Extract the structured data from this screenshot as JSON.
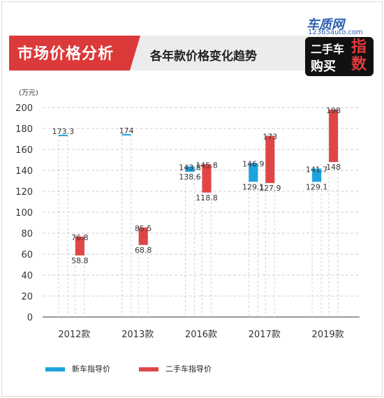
{
  "header": {
    "title": "市场价格分析",
    "subtitle": "各年款价格变化趋势",
    "logo": {
      "brand": "车质网",
      "url": "12365auto.com",
      "line1": "二手车",
      "line2": "购买",
      "big": "指数"
    }
  },
  "colors": {
    "new": "#1ba3de",
    "used": "#e04646"
  },
  "chart_data": {
    "type": "bar",
    "subtype": "floating-range",
    "ylabel": "(万元)",
    "ylim": [
      0,
      200
    ],
    "yticks": [
      0,
      20,
      40,
      60,
      80,
      100,
      120,
      140,
      160,
      180,
      200
    ],
    "grid": true,
    "legend_position": "bottom-left",
    "categories": [
      "2012款",
      "2013款",
      "2016款",
      "2017款",
      "2019款"
    ],
    "series": [
      {
        "name": "新车指导价",
        "ranges": [
          {
            "low": 173.3,
            "high": 173.3,
            "labels": [
              "173.3"
            ]
          },
          {
            "low": 174,
            "high": 174,
            "labels": [
              "174"
            ]
          },
          {
            "low": 138.6,
            "high": 143.8,
            "labels": [
              "143.8",
              "138.6"
            ]
          },
          {
            "low": 129.1,
            "high": 146.9,
            "labels": [
              "146.9",
              "129.1"
            ]
          },
          {
            "low": 129.1,
            "high": 141.7,
            "labels": [
              "141.7",
              "129.1"
            ]
          }
        ]
      },
      {
        "name": "二手车指导价",
        "ranges": [
          {
            "low": 58.8,
            "high": 76.8,
            "labels": [
              "76.8",
              "58.8"
            ]
          },
          {
            "low": 68.8,
            "high": 85.5,
            "labels": [
              "85.5",
              "68.8"
            ]
          },
          {
            "low": 118.8,
            "high": 145.8,
            "labels": [
              "145.8",
              "118.8"
            ]
          },
          {
            "low": 127.9,
            "high": 173,
            "labels": [
              "173",
              "127.9"
            ]
          },
          {
            "low": 148,
            "high": 198,
            "labels": [
              "198",
              "148"
            ]
          }
        ]
      }
    ]
  }
}
